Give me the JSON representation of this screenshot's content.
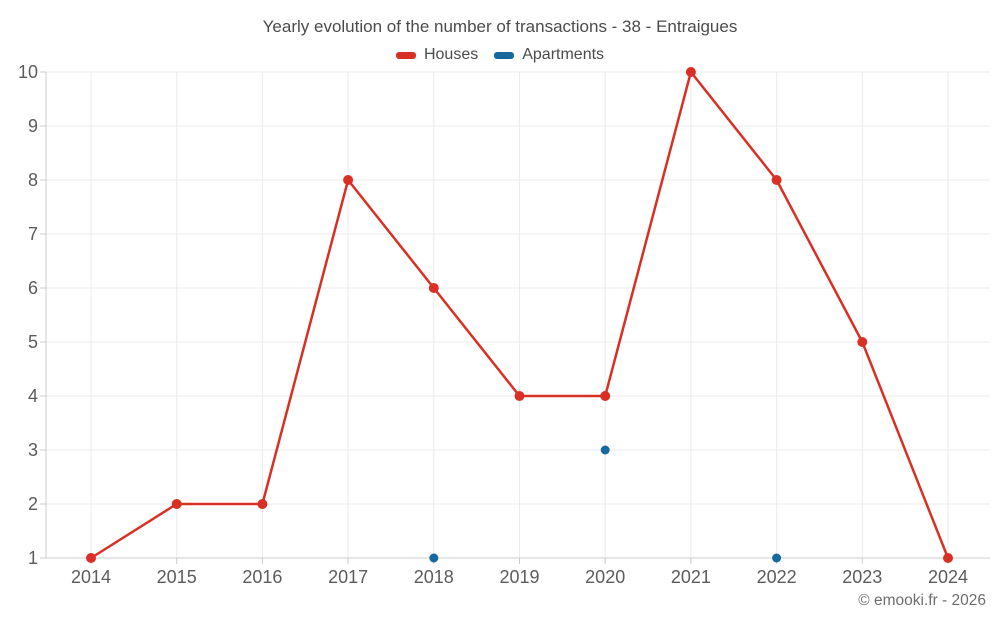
{
  "chart_data": {
    "type": "line",
    "title": "Yearly evolution of the number of transactions - 38 - Entraigues",
    "categories": [
      "2014",
      "2015",
      "2016",
      "2017",
      "2018",
      "2019",
      "2020",
      "2021",
      "2022",
      "2023",
      "2024"
    ],
    "series": [
      {
        "name": "Houses",
        "color": "#d93026",
        "draw_line": true,
        "marker_radius": 5,
        "values": [
          1,
          2,
          2,
          8,
          6,
          4,
          4,
          10,
          8,
          5,
          1
        ]
      },
      {
        "name": "Apartments",
        "color": "#16699e",
        "draw_line": false,
        "marker_radius": 4.5,
        "values": [
          null,
          null,
          null,
          null,
          1,
          null,
          3,
          null,
          1,
          null,
          null
        ]
      }
    ],
    "xlabel": "",
    "ylabel": "",
    "ylim": [
      1,
      10
    ],
    "y_ticks": [
      1,
      2,
      3,
      4,
      5,
      6,
      7,
      8,
      9,
      10
    ],
    "grid": true,
    "legend_position": "top"
  },
  "footer": {
    "copyright": "© emooki.fr - 2026"
  }
}
